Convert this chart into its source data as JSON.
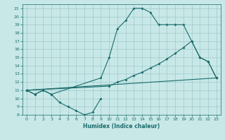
{
  "xlabel": "Humidex (Indice chaleur)",
  "background_color": "#c8e8e8",
  "grid_color": "#a0c8c8",
  "line_color": "#1a6b6b",
  "xlim": [
    -0.5,
    23.5
  ],
  "ylim": [
    8,
    21.5
  ],
  "xticks": [
    0,
    1,
    2,
    3,
    4,
    5,
    6,
    7,
    8,
    9,
    10,
    11,
    12,
    13,
    14,
    15,
    16,
    17,
    18,
    19,
    20,
    21,
    22,
    23
  ],
  "yticks": [
    8,
    9,
    10,
    11,
    12,
    13,
    14,
    15,
    16,
    17,
    18,
    19,
    20,
    21
  ],
  "series": [
    {
      "x": [
        0,
        1,
        2,
        3,
        4,
        5,
        6,
        7,
        8,
        9
      ],
      "y": [
        11,
        10.5,
        11,
        10.5,
        9.5,
        9,
        8.5,
        8,
        8.3,
        10
      ]
    },
    {
      "x": [
        0,
        1,
        2,
        3,
        9,
        10,
        11,
        12,
        13,
        14,
        15,
        16,
        17,
        18,
        19,
        20,
        21,
        22,
        23
      ],
      "y": [
        11,
        10.5,
        11,
        10.5,
        12.5,
        15,
        18.5,
        19.5,
        21,
        21,
        20.5,
        19,
        19,
        19,
        19,
        17,
        15,
        14.5,
        12.5
      ]
    },
    {
      "x": [
        0,
        23
      ],
      "y": [
        11,
        12.5
      ]
    },
    {
      "x": [
        0,
        10,
        11,
        12,
        13,
        14,
        15,
        16,
        17,
        18,
        19,
        20,
        21,
        22,
        23
      ],
      "y": [
        11,
        11.5,
        12,
        12.3,
        12.8,
        13.2,
        13.7,
        14.2,
        14.8,
        15.5,
        16.2,
        17,
        15,
        14.5,
        12.5
      ]
    }
  ]
}
